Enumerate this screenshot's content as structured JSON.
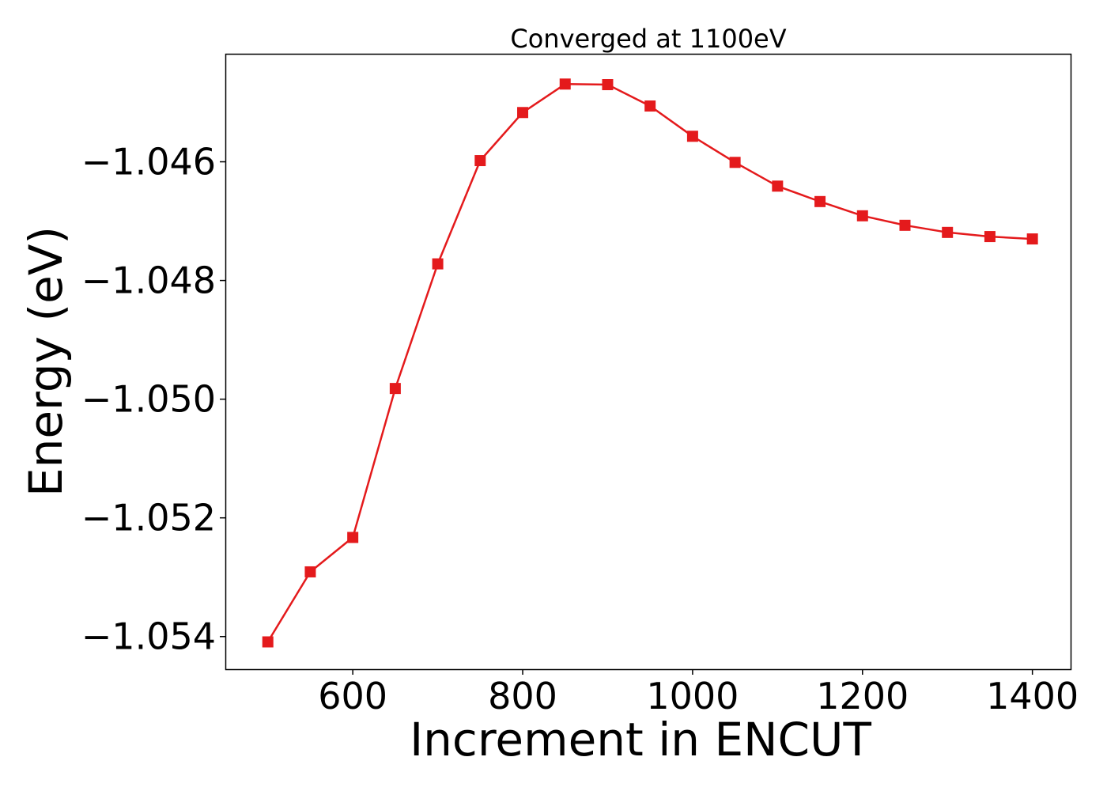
{
  "chart_data": {
    "type": "line",
    "title": "Converged at 1100eV",
    "xlabel": "Increment in ENCUT",
    "ylabel": "Energy (eV)",
    "xlim": [
      450,
      1445
    ],
    "ylim": [
      -1.05455,
      -1.04418
    ],
    "xticks": [
      600,
      800,
      1000,
      1200,
      1400
    ],
    "xtick_labels": [
      "600",
      "800",
      "1000",
      "1200",
      "1400"
    ],
    "yticks": [
      -1.054,
      -1.052,
      -1.05,
      -1.048,
      -1.046
    ],
    "ytick_labels": [
      "−1.054",
      "−1.052",
      "−1.050",
      "−1.048",
      "−1.046"
    ],
    "grid": false,
    "series": [
      {
        "color": "#e41a1c",
        "marker": "square",
        "x": [
          500,
          550,
          600,
          650,
          700,
          750,
          800,
          850,
          900,
          950,
          1000,
          1050,
          1100,
          1150,
          1200,
          1250,
          1300,
          1350,
          1400
        ],
        "y": [
          -1.05409,
          -1.05291,
          -1.05233,
          -1.04982,
          -1.04772,
          -1.04598,
          -1.04517,
          -1.04469,
          -1.0447,
          -1.04506,
          -1.04557,
          -1.04601,
          -1.04641,
          -1.04667,
          -1.04691,
          -1.04707,
          -1.04719,
          -1.04726,
          -1.0473
        ]
      }
    ]
  }
}
